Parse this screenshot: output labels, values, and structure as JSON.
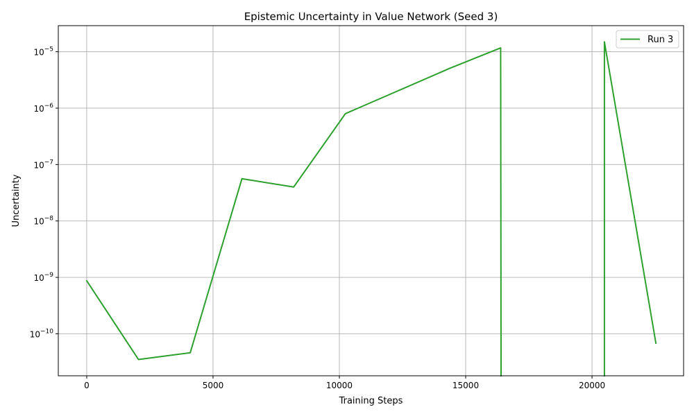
{
  "chart_data": {
    "type": "line",
    "title": "Epistemic Uncertainty in Value Network (Seed 3)",
    "xlabel": "Training Steps",
    "ylabel": "Uncertainty",
    "yscale": "log",
    "xlim": [
      -1125,
      23625
    ],
    "ylim": [
      1.8e-11,
      2.9e-05
    ],
    "grid": true,
    "legend_position": "top-right",
    "x_ticks": [
      0,
      5000,
      10000,
      15000,
      20000
    ],
    "y_ticks": [
      1e-10,
      1e-09,
      1e-08,
      1e-07,
      1e-06,
      1e-05
    ],
    "y_tick_labels": [
      {
        "base": "10",
        "exp": "−10"
      },
      {
        "base": "10",
        "exp": "−9"
      },
      {
        "base": "10",
        "exp": "−8"
      },
      {
        "base": "10",
        "exp": "−7"
      },
      {
        "base": "10",
        "exp": "−6"
      },
      {
        "base": "10",
        "exp": "−5"
      }
    ],
    "series": [
      {
        "name": "Run 3",
        "color": "#2ca02c",
        "points": [
          [
            0,
            8.7e-10
          ],
          [
            2048,
            3.5e-11
          ],
          [
            4096,
            4.6e-11
          ],
          [
            6144,
            5.6e-08
          ],
          [
            8192,
            4e-08
          ],
          [
            10240,
            8e-07
          ],
          [
            12288,
            2e-06
          ],
          [
            14336,
            5e-06
          ],
          [
            16384,
            1.17e-05
          ],
          [
            16400,
            null
          ],
          [
            18432,
            null
          ],
          [
            20480,
            null
          ],
          [
            20490,
            1.5e-05
          ],
          [
            22528,
            6.8e-11
          ]
        ]
      }
    ]
  }
}
